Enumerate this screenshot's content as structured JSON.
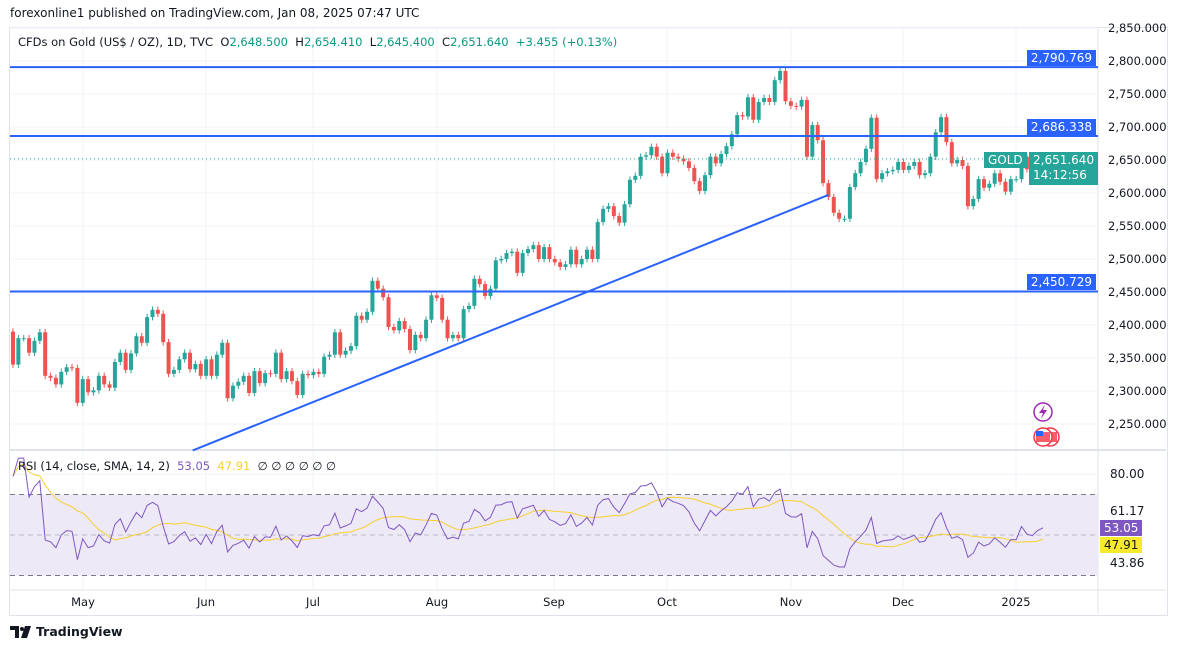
{
  "publisher_line": "forexonline1 published on TradingView.com, Jan 08, 2025 07:47 UTC",
  "legend": {
    "symbol": "CFDs on Gold (US$ / OZ), 1D, TVC",
    "o_label": "O",
    "o": "2,648.500",
    "h_label": "H",
    "h": "2,654.410",
    "l_label": "L",
    "l": "2,645.400",
    "c_label": "C",
    "c": "2,651.640",
    "change": "+3.455 (+0.13%)"
  },
  "rsi_legend": {
    "label": "RSI (14, close, SMA, 14, 2)",
    "rsi": "53.05",
    "sma": "47.91",
    "empty_values": "∅  ∅  ∅  ∅  ∅  ∅"
  },
  "price_tags": {
    "level_top": "2,790.769",
    "level_mid": "2,686.338",
    "level_low": "2,450.729",
    "symbol_tag": "GOLD",
    "last_price": "2,651.640",
    "countdown": "14:12:56",
    "rsi_value": "53.05",
    "rsi_sma": "47.91",
    "rsi_upper": "61.17",
    "rsi_lower": "43.86",
    "rsi_top": "80.00"
  },
  "footer": {
    "brand": "TradingView"
  },
  "colors": {
    "up": "#26a69a",
    "down": "#ef5350",
    "level": "#2962ff",
    "rsi": "#7e57c2",
    "rsi_sma": "#f7d02c",
    "band": "#ede9f7"
  },
  "chart_data": {
    "type": "candlestick",
    "title": "CFDs on Gold (US$ / OZ), 1D, TVC",
    "y_ticks": [
      "2,850.000",
      "2,800.000",
      "2,750.000",
      "2,700.000",
      "2,650.000",
      "2,600.000",
      "2,550.000",
      "2,500.000",
      "2,450.000",
      "2,400.000",
      "2,350.000",
      "2,300.000",
      "2,250.000"
    ],
    "ylim": [
      2215,
      2860
    ],
    "x_ticks": [
      "May",
      "Jun",
      "Jul",
      "Aug",
      "Sep",
      "Oct",
      "Nov",
      "Dec",
      "2025"
    ],
    "horizontal_levels": [
      2790.769,
      2686.338,
      2450.729
    ],
    "trendline_prices": [
      2210,
      2597
    ],
    "grid": true,
    "closes": [
      2340,
      2380,
      2380,
      2358,
      2376,
      2389,
      2323,
      2320,
      2310,
      2329,
      2336,
      2335,
      2282,
      2318,
      2298,
      2301,
      2323,
      2310,
      2305,
      2344,
      2358,
      2332,
      2357,
      2383,
      2373,
      2412,
      2423,
      2417,
      2374,
      2326,
      2332,
      2348,
      2358,
      2333,
      2341,
      2323,
      2348,
      2323,
      2355,
      2373,
      2289,
      2308,
      2314,
      2323,
      2297,
      2330,
      2312,
      2327,
      2326,
      2358,
      2318,
      2330,
      2315,
      2294,
      2326,
      2324,
      2329,
      2326,
      2352,
      2355,
      2389,
      2355,
      2361,
      2368,
      2414,
      2408,
      2420,
      2467,
      2455,
      2442,
      2397,
      2392,
      2406,
      2394,
      2362,
      2385,
      2380,
      2408,
      2445,
      2441,
      2408,
      2380,
      2385,
      2380,
      2424,
      2429,
      2470,
      2462,
      2444,
      2455,
      2498,
      2500,
      2509,
      2511,
      2479,
      2509,
      2515,
      2521,
      2500,
      2518,
      2500,
      2495,
      2488,
      2492,
      2514,
      2492,
      2500,
      2514,
      2500,
      2556,
      2576,
      2580,
      2565,
      2555,
      2583,
      2620,
      2626,
      2655,
      2657,
      2670,
      2655,
      2630,
      2661,
      2655,
      2652,
      2648,
      2638,
      2618,
      2603,
      2627,
      2655,
      2645,
      2659,
      2671,
      2689,
      2718,
      2716,
      2745,
      2711,
      2738,
      2744,
      2738,
      2771,
      2785,
      2739,
      2732,
      2731,
      2741,
      2655,
      2703,
      2680,
      2615,
      2594,
      2570,
      2561,
      2561,
      2609,
      2630,
      2647,
      2667,
      2714,
      2621,
      2630,
      2633,
      2635,
      2647,
      2635,
      2641,
      2647,
      2627,
      2630,
      2655,
      2692,
      2715,
      2677,
      2645,
      2650,
      2641,
      2580,
      2591,
      2621,
      2608,
      2614,
      2630,
      2617,
      2602,
      2621,
      2621,
      2655,
      2636,
      2632,
      2645,
      2651.64
    ],
    "rsi": {
      "period": 14,
      "sma_period": 14,
      "band": [
        30,
        70
      ],
      "mid": 50,
      "ylim": [
        20,
        90
      ],
      "last": 53.05,
      "last_sma": 47.91
    }
  }
}
